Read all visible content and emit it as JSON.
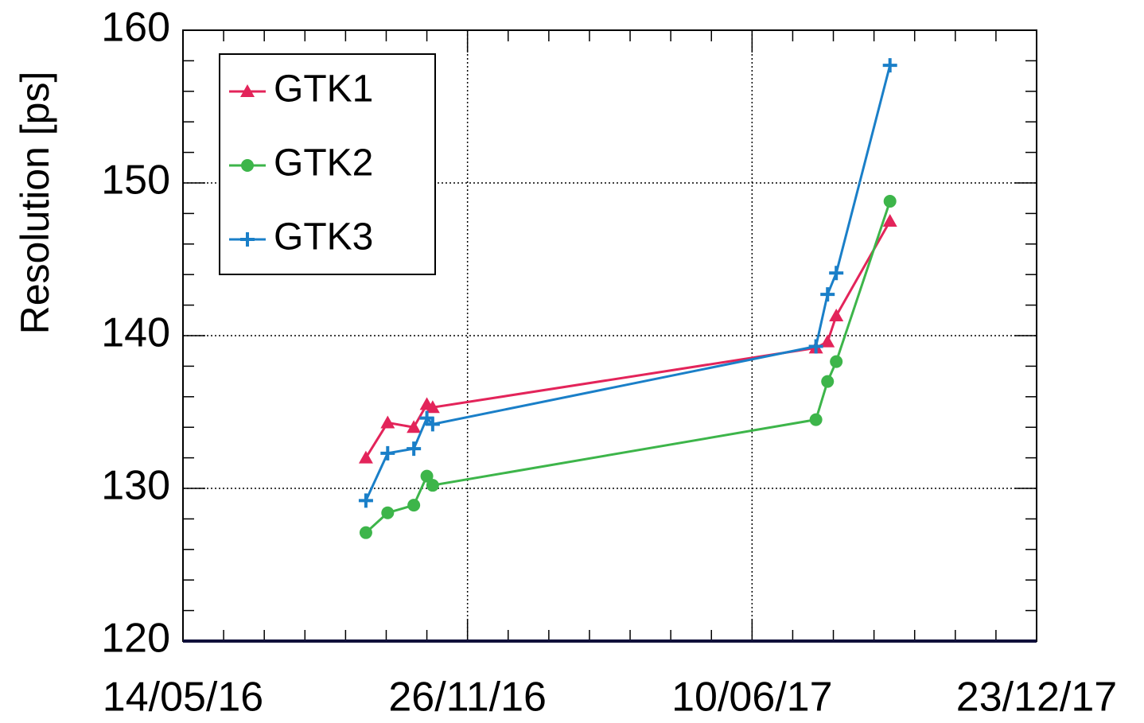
{
  "chart_data": {
    "type": "line",
    "y_label": "Resolution [ps]",
    "x": [
      "2016-09-17",
      "2016-10-02",
      "2016-10-20",
      "2016-10-29",
      "2016-11-02",
      "2017-07-24",
      "2017-08-01",
      "2017-08-07",
      "2017-09-13"
    ],
    "series": [
      {
        "name": "GTK1",
        "color": "#e3245a",
        "marker": "triangle",
        "values": [
          132.0,
          134.3,
          134.0,
          135.5,
          135.3,
          139.2,
          139.6,
          141.3,
          147.5
        ]
      },
      {
        "name": "GTK2",
        "color": "#3db54a",
        "marker": "circle",
        "values": [
          127.1,
          128.4,
          128.9,
          130.8,
          130.2,
          134.5,
          137.0,
          138.3,
          148.8
        ]
      },
      {
        "name": "GTK3",
        "color": "#1a7fc8",
        "marker": "cross",
        "values": [
          129.2,
          132.3,
          132.6,
          134.6,
          134.2,
          139.3,
          142.7,
          144.1,
          157.7
        ]
      }
    ],
    "xlim": [
      "2016-05-14",
      "2017-12-23"
    ],
    "xticks": [
      {
        "value": "2016-05-14",
        "label": "14/05/16"
      },
      {
        "value": "2016-11-26",
        "label": "26/11/16"
      },
      {
        "value": "2017-06-10",
        "label": "10/06/17"
      },
      {
        "value": "2017-12-23",
        "label": "23/12/17"
      }
    ],
    "ylim": [
      120,
      160
    ],
    "yticks": [
      120,
      130,
      140,
      150,
      160
    ],
    "grid": true,
    "legend": "upper left"
  }
}
